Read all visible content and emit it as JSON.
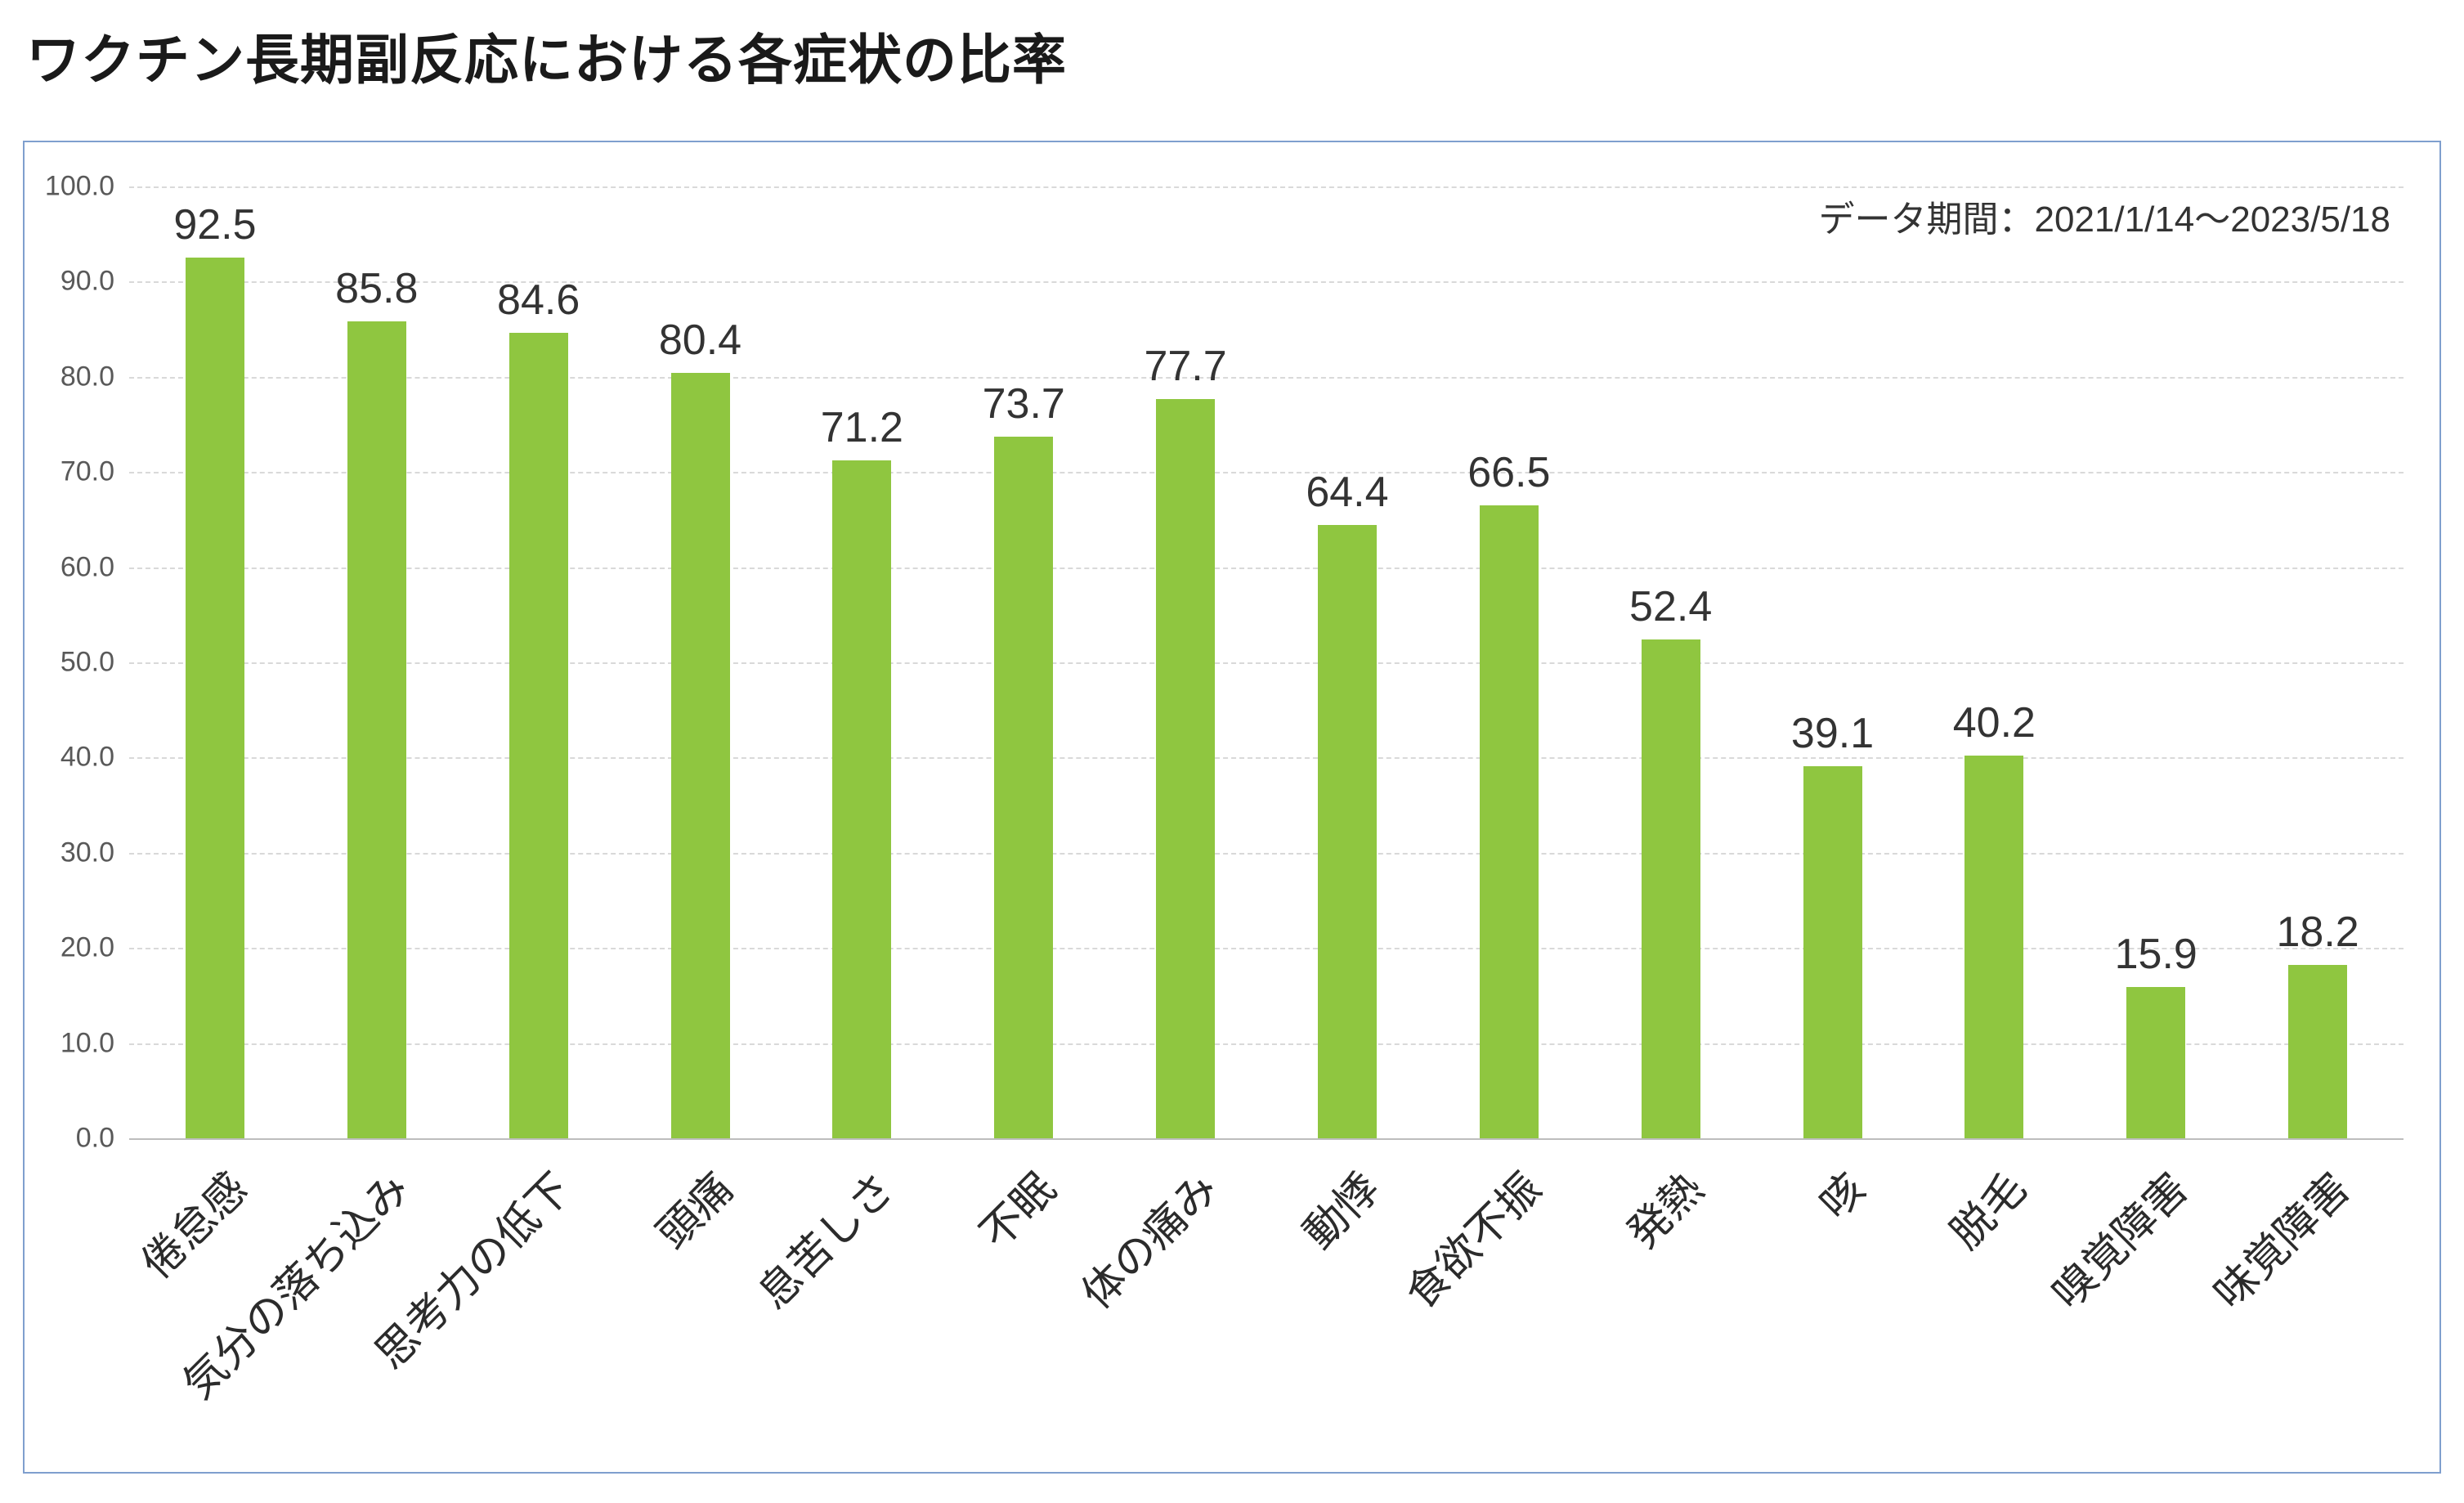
{
  "title": "ワクチン長期副反応における各症状の比率",
  "chart_data": {
    "type": "bar",
    "title": "ワクチン長期副反応における各症状の比率",
    "annotation": "データ期間：2021/1/14～2023/5/18",
    "categories": [
      "倦怠感",
      "気分の落ち込み",
      "思考力の低下",
      "頭痛",
      "息苦しさ",
      "不眠",
      "体の痛み",
      "動悸",
      "食欲不振",
      "発熱",
      "咳",
      "脱毛",
      "嗅覚障害",
      "味覚障害"
    ],
    "values": [
      92.5,
      85.8,
      84.6,
      80.4,
      71.2,
      73.7,
      77.7,
      64.4,
      66.5,
      52.4,
      39.1,
      40.2,
      15.9,
      18.2
    ],
    "xlabel": "",
    "ylabel": "",
    "ylim": [
      0,
      100
    ],
    "ytick_step": 10,
    "ytick_format_decimals": 1,
    "grid": true,
    "gridline_style": "dashed",
    "legend": "none",
    "bar_color": "#8fc640",
    "border_color": "#7f9fce"
  }
}
